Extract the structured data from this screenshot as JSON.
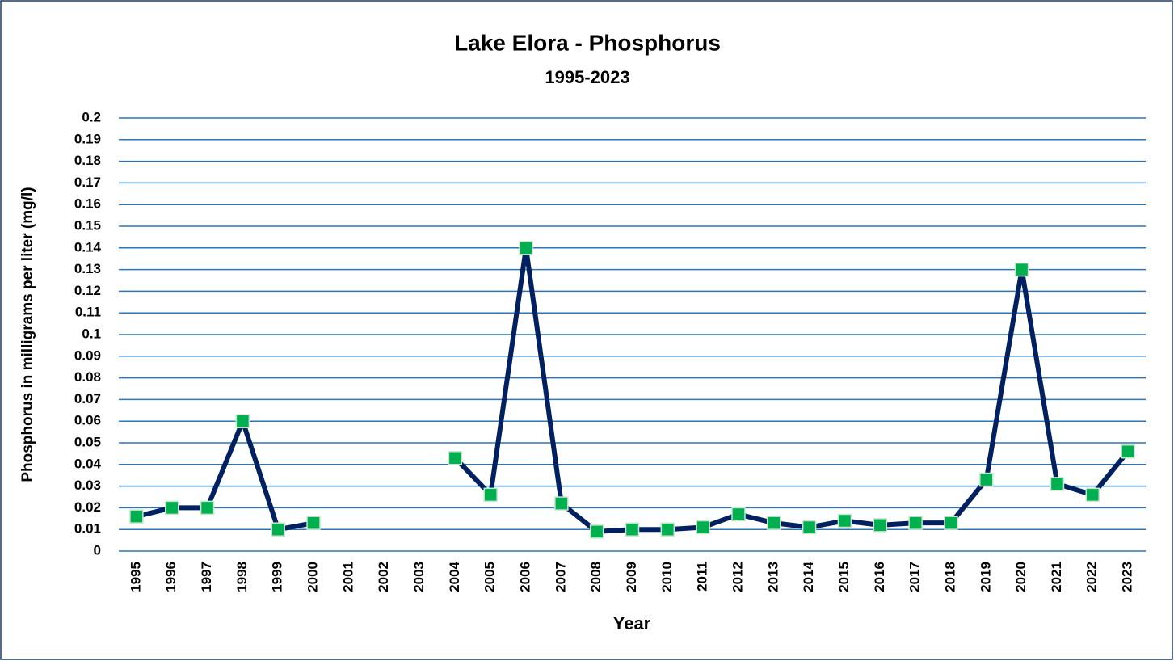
{
  "chart_data": {
    "type": "line",
    "title": "Lake Elora - Phosphorus",
    "subtitle": "1995-2023",
    "xlabel": "Year",
    "ylabel": "Phosphorus in milligrams per liter (mg/l)",
    "categories": [
      "1995",
      "1996",
      "1997",
      "1998",
      "1999",
      "2000",
      "2001",
      "2002",
      "2003",
      "2004",
      "2005",
      "2006",
      "2007",
      "2008",
      "2009",
      "2010",
      "2011",
      "2012",
      "2013",
      "2014",
      "2015",
      "2016",
      "2017",
      "2018",
      "2019",
      "2020",
      "2021",
      "2022",
      "2023"
    ],
    "series": [
      {
        "name": "Phosphorus",
        "color": "#002060",
        "marker_color": "#00b050",
        "values": [
          0.016,
          0.02,
          0.02,
          0.06,
          0.01,
          0.013,
          null,
          null,
          null,
          0.043,
          0.026,
          0.14,
          0.022,
          0.009,
          0.01,
          0.01,
          0.011,
          0.017,
          0.013,
          0.011,
          0.014,
          0.012,
          0.013,
          0.013,
          0.033,
          0.13,
          0.031,
          0.026,
          0.046
        ]
      }
    ],
    "ylim": [
      0,
      0.2
    ],
    "yticks": [
      0,
      0.01,
      0.02,
      0.03,
      0.04,
      0.05,
      0.06,
      0.07,
      0.08,
      0.09,
      0.1,
      0.11,
      0.12,
      0.13,
      0.14,
      0.15,
      0.16,
      0.17,
      0.18,
      0.19,
      0.2
    ],
    "grid": true,
    "grid_color": "#2e75b6"
  }
}
